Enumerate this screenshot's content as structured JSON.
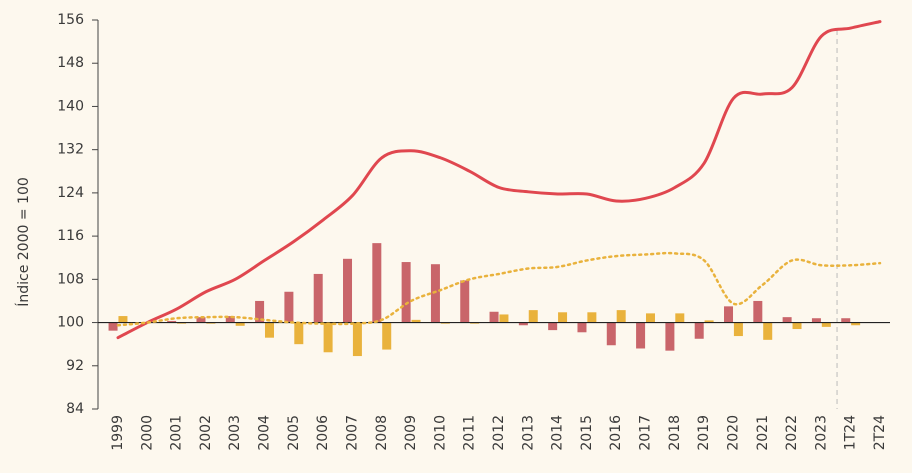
{
  "chart_data": {
    "type": "bar",
    "y_label": "Índice 2000 = 100",
    "categories": [
      "1999",
      "2000",
      "2001",
      "2002",
      "2003",
      "2004",
      "2005",
      "2006",
      "2007",
      "2008",
      "2009",
      "2010",
      "2011",
      "2012",
      "2013",
      "2014",
      "2015",
      "2016",
      "2017",
      "2018",
      "2019",
      "2020",
      "2021",
      "2022",
      "2023",
      "1T24",
      "2T24"
    ],
    "ylim": [
      84,
      156
    ],
    "yticks": [
      84,
      92,
      100,
      108,
      116,
      124,
      132,
      140,
      148,
      156
    ],
    "bar_base": 100,
    "series": [
      {
        "type": "bar",
        "color": "#c9656a",
        "values": [
          98.5,
          null,
          100.3,
          101,
          101.2,
          104,
          105.7,
          109,
          111.8,
          114.7,
          111.2,
          110.8,
          107.8,
          102,
          99.5,
          98.6,
          98.2,
          95.8,
          95.2,
          94.8,
          97,
          103,
          104,
          101,
          100.8,
          100.8,
          null
        ]
      },
      {
        "type": "bar",
        "color": "#e9b23c",
        "values": [
          101.2,
          null,
          99.8,
          99.8,
          99.4,
          97.2,
          96,
          94.5,
          93.8,
          95,
          100.5,
          99.8,
          99.8,
          101.5,
          102.3,
          101.9,
          101.9,
          102.3,
          101.7,
          101.7,
          100.4,
          97.5,
          96.8,
          98.8,
          99.2,
          99.5,
          null
        ]
      },
      {
        "type": "line",
        "color": "#e0474f",
        "dash": "solid",
        "values": [
          97.2,
          100,
          102.5,
          105.7,
          108,
          111.5,
          115,
          119,
          123.5,
          130.5,
          131.8,
          130.5,
          128,
          125,
          124.2,
          123.8,
          123.8,
          122.5,
          123,
          125,
          129.5,
          141.5,
          142.3,
          143.5,
          153,
          154.5,
          155.7
        ]
      },
      {
        "type": "line",
        "color": "#e9b23c",
        "dash": "dotted",
        "values": [
          99.5,
          100,
          100.8,
          101,
          101,
          100.5,
          100,
          99.8,
          99.8,
          100.5,
          104,
          106,
          108,
          109,
          110,
          110.3,
          111.5,
          112.3,
          112.6,
          112.8,
          111.5,
          103.5,
          107,
          111.5,
          110.6,
          110.6,
          111
        ]
      }
    ]
  }
}
